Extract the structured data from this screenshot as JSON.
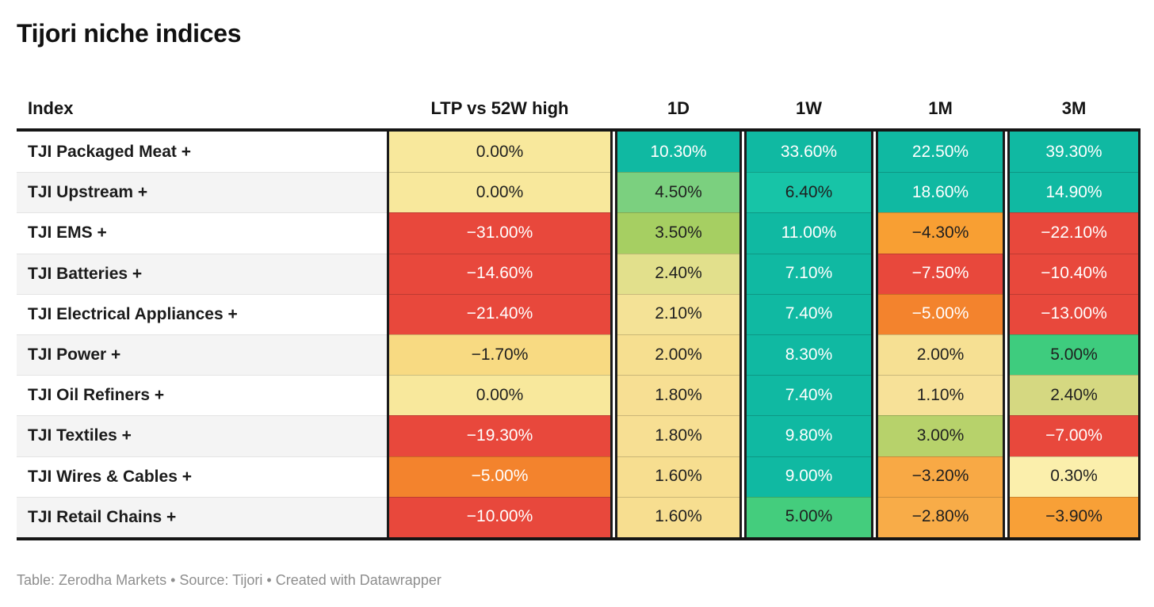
{
  "title": "Tijori niche indices",
  "footer": "Table: Zerodha Markets • Source: Tijori • Created with Datawrapper",
  "columns": [
    "Index",
    "LTP vs 52W high",
    "1D",
    "1W",
    "1M",
    "3M"
  ],
  "palette": {
    "strong_gain_teal": "#10B9A2",
    "gain_teal_light": "#17C4A7",
    "gain_green": "#3ECC7E",
    "gain_green_light": "#7BD07F",
    "mild_gain_yellow_green": "#A6CF62",
    "flat_yellow": "#F8E89C",
    "mild_loss_orange": "#F8A541",
    "loss_deep_orange": "#F3832D",
    "strong_loss_red": "#E8483C",
    "row_stripe": "#F4F4F4",
    "rule_black": "#151515"
  },
  "chart_data": {
    "type": "table",
    "title": "Tijori niche indices",
    "columns": [
      "Index",
      "LTP vs 52W high",
      "1D",
      "1W",
      "1M",
      "3M"
    ],
    "unit": "percent",
    "rows": [
      {
        "index": "TJI Packaged Meat +",
        "values": [
          0.0,
          10.3,
          33.6,
          22.5,
          39.3
        ],
        "display": [
          "0.00%",
          "10.30%",
          "33.60%",
          "22.50%",
          "39.30%"
        ],
        "bg": [
          "#F8E89C",
          "#10B9A2",
          "#10B9A2",
          "#10B9A2",
          "#10B9A2"
        ],
        "fg": [
          "#1f1f1f",
          "#ffffff",
          "#ffffff",
          "#ffffff",
          "#ffffff"
        ]
      },
      {
        "index": "TJI Upstream +",
        "values": [
          0.0,
          4.5,
          6.4,
          18.6,
          14.9
        ],
        "display": [
          "0.00%",
          "4.50%",
          "6.40%",
          "18.60%",
          "14.90%"
        ],
        "bg": [
          "#F8E89C",
          "#7BD07F",
          "#17C4A7",
          "#10B9A2",
          "#10B9A2"
        ],
        "fg": [
          "#1f1f1f",
          "#1f1f1f",
          "#1f1f1f",
          "#ffffff",
          "#ffffff"
        ]
      },
      {
        "index": "TJI EMS +",
        "values": [
          -31.0,
          3.5,
          11.0,
          -4.3,
          -22.1
        ],
        "display": [
          "−31.00%",
          "3.50%",
          "11.00%",
          "−4.30%",
          "−22.10%"
        ],
        "bg": [
          "#E8483C",
          "#A6CF62",
          "#10B9A2",
          "#F89F33",
          "#E8483C"
        ],
        "fg": [
          "#ffffff",
          "#1f1f1f",
          "#ffffff",
          "#1f1f1f",
          "#ffffff"
        ]
      },
      {
        "index": "TJI Batteries +",
        "values": [
          -14.6,
          2.4,
          7.1,
          -7.5,
          -10.4
        ],
        "display": [
          "−14.60%",
          "2.40%",
          "7.10%",
          "−7.50%",
          "−10.40%"
        ],
        "bg": [
          "#E8483C",
          "#E2E08C",
          "#10B9A2",
          "#E8483C",
          "#E8483C"
        ],
        "fg": [
          "#ffffff",
          "#1f1f1f",
          "#ffffff",
          "#ffffff",
          "#ffffff"
        ]
      },
      {
        "index": "TJI Electrical Appliances +",
        "values": [
          -21.4,
          2.1,
          7.4,
          -5.0,
          -13.0
        ],
        "display": [
          "−21.40%",
          "2.10%",
          "7.40%",
          "−5.00%",
          "−13.00%"
        ],
        "bg": [
          "#E8483C",
          "#F4E296",
          "#10B9A2",
          "#F3832D",
          "#E8483C"
        ],
        "fg": [
          "#ffffff",
          "#1f1f1f",
          "#ffffff",
          "#ffffff",
          "#ffffff"
        ]
      },
      {
        "index": "TJI Power +",
        "values": [
          -1.7,
          2.0,
          8.3,
          2.0,
          5.0
        ],
        "display": [
          "−1.70%",
          "2.00%",
          "8.30%",
          "2.00%",
          "5.00%"
        ],
        "bg": [
          "#F8DA82",
          "#F6DF90",
          "#10B9A2",
          "#F6E093",
          "#3ECC7E"
        ],
        "fg": [
          "#1f1f1f",
          "#1f1f1f",
          "#ffffff",
          "#1f1f1f",
          "#1f1f1f"
        ]
      },
      {
        "index": "TJI Oil Refiners +",
        "values": [
          0.0,
          1.8,
          7.4,
          1.1,
          2.4
        ],
        "display": [
          "0.00%",
          "1.80%",
          "7.40%",
          "1.10%",
          "2.40%"
        ],
        "bg": [
          "#F8E89C",
          "#F7DF93",
          "#10B9A2",
          "#F7E198",
          "#D5D881"
        ],
        "fg": [
          "#1f1f1f",
          "#1f1f1f",
          "#ffffff",
          "#1f1f1f",
          "#1f1f1f"
        ]
      },
      {
        "index": "TJI Textiles +",
        "values": [
          -19.3,
          1.8,
          9.8,
          3.0,
          -7.0
        ],
        "display": [
          "−19.30%",
          "1.80%",
          "9.80%",
          "3.00%",
          "−7.00%"
        ],
        "bg": [
          "#E8483C",
          "#F7DF93",
          "#10B9A2",
          "#B7D26B",
          "#E8483C"
        ],
        "fg": [
          "#ffffff",
          "#1f1f1f",
          "#ffffff",
          "#1f1f1f",
          "#ffffff"
        ]
      },
      {
        "index": "TJI Wires & Cables +",
        "values": [
          -5.0,
          1.6,
          9.0,
          -3.2,
          0.3
        ],
        "display": [
          "−5.00%",
          "1.60%",
          "9.00%",
          "−3.20%",
          "0.30%"
        ],
        "bg": [
          "#F3832D",
          "#F7DE90",
          "#10B9A2",
          "#F8A945",
          "#FBEFAC"
        ],
        "fg": [
          "#ffffff",
          "#1f1f1f",
          "#ffffff",
          "#1f1f1f",
          "#1f1f1f"
        ]
      },
      {
        "index": "TJI Retail Chains +",
        "values": [
          -10.0,
          1.6,
          5.0,
          -2.8,
          -3.9
        ],
        "display": [
          "−10.00%",
          "1.60%",
          "5.00%",
          "−2.80%",
          "−3.90%"
        ],
        "bg": [
          "#E8483C",
          "#F7DE90",
          "#44CD7D",
          "#F8AC48",
          "#F8A037"
        ],
        "fg": [
          "#ffffff",
          "#1f1f1f",
          "#1f1f1f",
          "#1f1f1f",
          "#1f1f1f"
        ]
      }
    ]
  }
}
